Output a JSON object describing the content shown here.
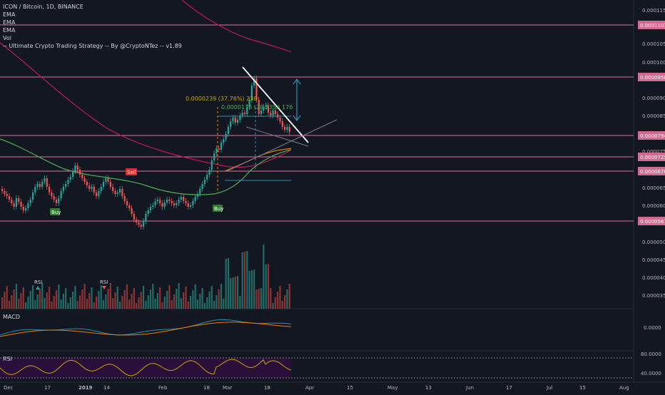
{
  "header": {
    "symbol_line": "ICON / Bitcoin, 1D, BINANCE",
    "indicators": [
      "EMA",
      "EMA",
      "EMA",
      "Vol",
      "-- Ultimate Crypto Trading Strategy -- By @CryptoNTez -- v1.89"
    ]
  },
  "price_axis": {
    "ticks": [
      "0.0001150",
      "0.0001050",
      "0.0001000",
      "0.0000900",
      "0.0000850",
      "0.0000750",
      "0.0000650",
      "0.0000600",
      "0.0000500",
      "0.0000450",
      "0.0000400",
      "0.0000350"
    ],
    "level_tags": [
      "0.0001103",
      "0.0000958",
      "0.0000794",
      "0.0000725",
      "0.0000676",
      "0.0000561"
    ]
  },
  "time_axis": {
    "labels": [
      "Dec",
      "17",
      "2019",
      "14",
      "Feb",
      "18",
      "Mar",
      "18",
      "Apr",
      "15",
      "May",
      "13",
      "Jun",
      "17",
      "Jul",
      "15",
      "Aug"
    ]
  },
  "annotations": {
    "measure_text": "0.0000239 (37.76%) 239",
    "measure_text_2": "0.0000176 (28.23%) 176",
    "sell_label": "Sell",
    "buy_labels": [
      "Buy",
      "Buy"
    ],
    "rsi_markers": [
      "RSI",
      "RSI"
    ]
  },
  "panes": {
    "macd_label": "MACD",
    "macd_axis": "0.0000",
    "rsi_label": "RSI",
    "rsi_axis_top": "80.0000",
    "rsi_axis_bottom": "40.0000"
  },
  "colors": {
    "background": "#131722",
    "up": "#26a69a",
    "down": "#ef5350",
    "level_line": "#e57399",
    "ema_long": "#c2185b",
    "ema_mid": "#4caf50",
    "ema_short": "#f57c00",
    "trend": "#ffffff",
    "arrow": "#2f8fa8",
    "rsi_fill": "#2a0f3a",
    "rsi_line": "#c8a600"
  }
}
